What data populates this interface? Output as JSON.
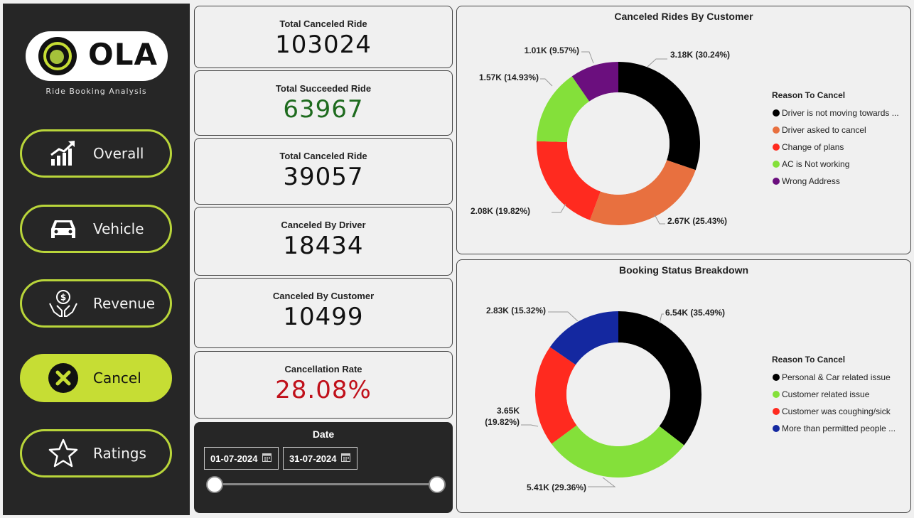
{
  "sidebar": {
    "logo_text": "OLA",
    "subtitle": "Ride Booking Analysis",
    "nav": [
      {
        "label": "Overall",
        "icon": "chart-growth-icon"
      },
      {
        "label": "Vehicle",
        "icon": "car-icon"
      },
      {
        "label": "Revenue",
        "icon": "money-hands-icon"
      },
      {
        "label": "Cancel",
        "icon": "x-circle-icon"
      },
      {
        "label": "Ratings",
        "icon": "star-icon"
      }
    ]
  },
  "cards": [
    {
      "title": "Total Canceled Ride",
      "value": "103024",
      "color": "#111111"
    },
    {
      "title": "Total Succeeded Ride",
      "value": "63967",
      "color": "#1e6b1e"
    },
    {
      "title": "Total Canceled Ride",
      "value": "39057",
      "color": "#111111"
    },
    {
      "title": "Canceled By Driver",
      "value": "18434",
      "color": "#111111"
    },
    {
      "title": "Canceled By Customer",
      "value": "10499",
      "color": "#111111"
    },
    {
      "title": "Cancellation Rate",
      "value": "28.08%",
      "color": "#c0101a"
    }
  ],
  "date_filter": {
    "title": "Date",
    "start": "01-07-2024",
    "end": "31-07-2024"
  },
  "chart_data": [
    {
      "type": "pie",
      "title": "Canceled Rides By Customer",
      "legend_title": "Reason To Cancel",
      "legend_position": "right",
      "categories": [
        "Driver is not moving towards ...",
        "Driver asked to cancel",
        "Change of plans",
        "AC is Not working",
        "Wrong Address"
      ],
      "values": [
        3180,
        2670,
        2080,
        1570,
        1010
      ],
      "percentages": [
        30.24,
        25.43,
        19.82,
        14.93,
        9.57
      ],
      "labels": [
        "3.18K (30.24%)",
        "2.67K (25.43%)",
        "2.08K (19.82%)",
        "1.57K (14.93%)",
        "1.01K (9.57%)"
      ],
      "colors": [
        "#000000",
        "#e8703f",
        "#ff2a1f",
        "#84e03a",
        "#6b0f7e"
      ]
    },
    {
      "type": "pie",
      "title": "Booking Status Breakdown",
      "legend_title": "Reason To Cancel",
      "legend_position": "right",
      "categories": [
        "Personal & Car related issue",
        "Customer related issue",
        "Customer was coughing/sick",
        "More than permitted people ..."
      ],
      "values": [
        6540,
        5410,
        3650,
        2830
      ],
      "percentages": [
        35.49,
        29.36,
        19.82,
        15.32
      ],
      "labels": [
        "6.54K (35.49%)",
        "5.41K (29.36%)",
        "3.65K (19.82%)",
        "2.83K (15.32%)"
      ],
      "colors": [
        "#000000",
        "#84e03a",
        "#ff2a1f",
        "#1428a0"
      ]
    }
  ]
}
